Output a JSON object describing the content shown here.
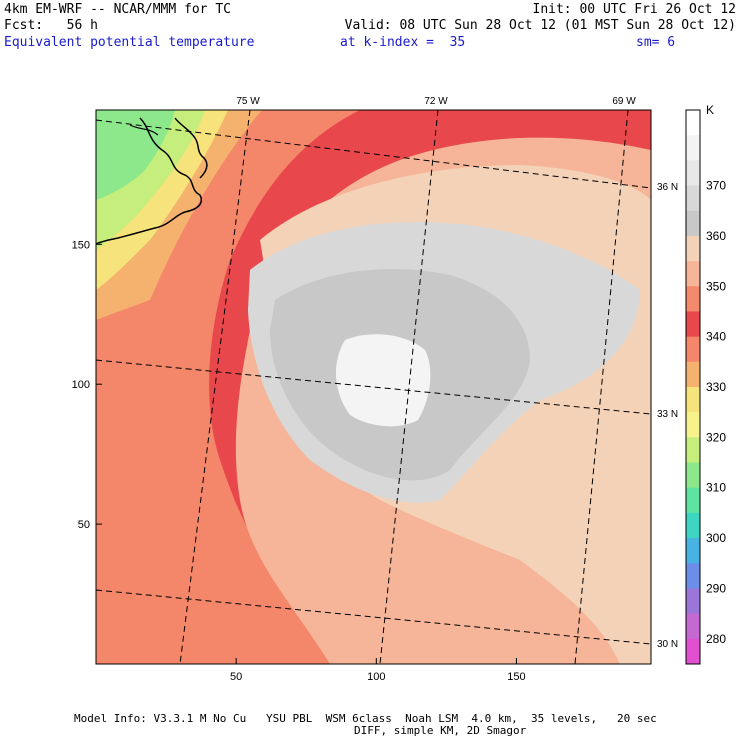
{
  "header": {
    "title": "4km EM-WRF -- NCAR/MMM for TC",
    "init": "Init: 00 UTC Fri 26 Oct 12",
    "forecast": "Fcst:   56 h",
    "valid": "Valid: 08 UTC Sun 28 Oct 12 (01 MST Sun 28 Oct 12)",
    "field": "Equivalent potential temperature",
    "k_index": "at k-index =  35",
    "smoothing": "sm= 6"
  },
  "map": {
    "x_ticks": [
      50,
      100,
      150
    ],
    "y_ticks": [
      50,
      100,
      150
    ],
    "x_ticks_labels": [
      "50",
      "100",
      "150"
    ],
    "y_ticks_labels": [
      "50",
      "100",
      "150"
    ],
    "longitude_labels": [
      "75 W",
      "72 W",
      "69 W"
    ],
    "latitude_labels": [
      "36 N",
      "33 N",
      "30 N"
    ]
  },
  "colorbar": {
    "unit": "K",
    "labels": [
      "370",
      "360",
      "350",
      "340",
      "330",
      "320",
      "310",
      "300",
      "290",
      "280"
    ],
    "colors": [
      "#ffffff",
      "#f4f4f4",
      "#e8e8e8",
      "#d8d8d8",
      "#c8c8c8",
      "#f3d2b8",
      "#f6b598",
      "#f48a6c",
      "#e8484c",
      "#f4866a",
      "#f5b26e",
      "#f6e37c",
      "#f6f28c",
      "#c6ee7c",
      "#8ce88a",
      "#5ce4a0",
      "#3cd6c2",
      "#48b2e2",
      "#6c8ee8",
      "#9a76d8",
      "#c468d2",
      "#e250d2"
    ]
  },
  "footer": {
    "line1": "Model Info: V3.3.1 M No Cu   YSU PBL  WSM 6class  Noah LSM  4.0 km,  35 levels,   20 sec",
    "line2": "DIFF, simple KM, 2D Smagor"
  }
}
